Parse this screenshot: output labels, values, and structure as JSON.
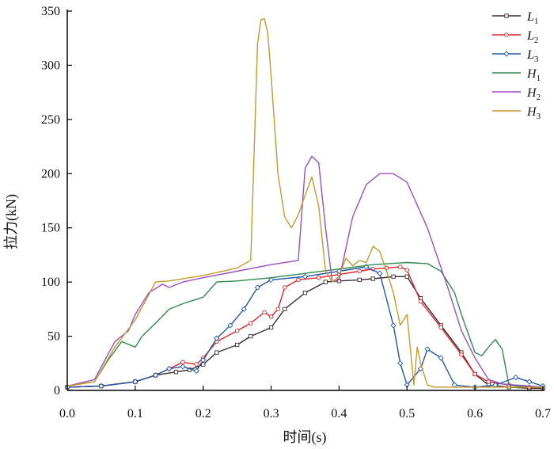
{
  "chart_data": {
    "type": "line",
    "xlabel": "时间(s)",
    "ylabel": "拉力(kN)",
    "xlim": [
      0.0,
      0.7
    ],
    "ylim": [
      0,
      350
    ],
    "x_ticks": [
      "0.0",
      "0.1",
      "0.2",
      "0.3",
      "0.4",
      "0.5",
      "0.6",
      "0.7"
    ],
    "y_ticks": [
      "0",
      "50",
      "100",
      "150",
      "200",
      "250",
      "300",
      "350"
    ],
    "grid": false,
    "legend_position": "top-right",
    "series": [
      {
        "name": "L1",
        "label_main": "L",
        "label_sub": "1",
        "color": "#3a2e2e",
        "marker": "square",
        "x": [
          0.0,
          0.05,
          0.1,
          0.13,
          0.16,
          0.18,
          0.2,
          0.22,
          0.25,
          0.27,
          0.3,
          0.32,
          0.35,
          0.38,
          0.4,
          0.43,
          0.45,
          0.48,
          0.5,
          0.52,
          0.55,
          0.58,
          0.6,
          0.62,
          0.65,
          0.68,
          0.7
        ],
        "y": [
          3,
          4,
          8,
          14,
          17,
          19,
          24,
          35,
          42,
          50,
          58,
          75,
          90,
          100,
          101,
          102,
          103,
          105,
          105,
          85,
          60,
          35,
          15,
          5,
          3,
          2,
          2
        ]
      },
      {
        "name": "L2",
        "label_main": "L",
        "label_sub": "2",
        "color": "#e0262c",
        "marker": "circle",
        "x": [
          0.0,
          0.05,
          0.1,
          0.13,
          0.15,
          0.17,
          0.19,
          0.2,
          0.22,
          0.25,
          0.27,
          0.29,
          0.3,
          0.31,
          0.32,
          0.34,
          0.37,
          0.4,
          0.43,
          0.45,
          0.47,
          0.49,
          0.5,
          0.52,
          0.55,
          0.58,
          0.6,
          0.62,
          0.65,
          0.68,
          0.7
        ],
        "y": [
          3,
          4,
          8,
          14,
          20,
          26,
          24,
          30,
          45,
          55,
          62,
          72,
          68,
          75,
          95,
          102,
          104,
          107,
          110,
          112,
          113,
          114,
          111,
          82,
          58,
          33,
          15,
          8,
          5,
          3,
          3
        ]
      },
      {
        "name": "L3",
        "label_main": "L",
        "label_sub": "3",
        "color": "#2358a8",
        "marker": "diamond",
        "x": [
          0.0,
          0.05,
          0.1,
          0.13,
          0.15,
          0.17,
          0.19,
          0.2,
          0.22,
          0.24,
          0.26,
          0.28,
          0.3,
          0.35,
          0.4,
          0.44,
          0.46,
          0.48,
          0.49,
          0.5,
          0.52,
          0.53,
          0.55,
          0.57,
          0.6,
          0.63,
          0.66,
          0.68,
          0.7
        ],
        "y": [
          3,
          4,
          8,
          14,
          20,
          22,
          18,
          28,
          48,
          60,
          75,
          95,
          102,
          105,
          110,
          114,
          108,
          60,
          25,
          5,
          20,
          38,
          30,
          5,
          3,
          5,
          12,
          8,
          4
        ]
      },
      {
        "name": "H1",
        "label_main": "H",
        "label_sub": "1",
        "color": "#2e8b4e",
        "marker": "none",
        "x": [
          0.0,
          0.04,
          0.06,
          0.08,
          0.1,
          0.11,
          0.13,
          0.15,
          0.17,
          0.2,
          0.22,
          0.25,
          0.3,
          0.35,
          0.4,
          0.45,
          0.5,
          0.53,
          0.55,
          0.57,
          0.58,
          0.6,
          0.61,
          0.62,
          0.63,
          0.64,
          0.65,
          0.68,
          0.7
        ],
        "y": [
          4,
          8,
          28,
          45,
          40,
          50,
          62,
          75,
          80,
          86,
          100,
          101,
          104,
          108,
          112,
          116,
          118,
          117,
          110,
          90,
          70,
          35,
          32,
          40,
          47,
          38,
          5,
          3,
          3
        ]
      },
      {
        "name": "H2",
        "label_main": "H",
        "label_sub": "2",
        "color": "#9c4fc4",
        "marker": "none",
        "x": [
          0.0,
          0.04,
          0.07,
          0.09,
          0.1,
          0.12,
          0.14,
          0.15,
          0.17,
          0.2,
          0.25,
          0.3,
          0.34,
          0.35,
          0.36,
          0.37,
          0.38,
          0.39,
          0.4,
          0.42,
          0.44,
          0.46,
          0.48,
          0.5,
          0.53,
          0.56,
          0.58,
          0.6,
          0.62,
          0.64,
          0.66,
          0.68,
          0.7
        ],
        "y": [
          4,
          10,
          45,
          55,
          70,
          90,
          98,
          95,
          100,
          104,
          110,
          116,
          120,
          205,
          216,
          210,
          150,
          100,
          102,
          160,
          190,
          200,
          200,
          192,
          150,
          95,
          55,
          30,
          10,
          6,
          5,
          4,
          3
        ]
      },
      {
        "name": "H3",
        "label_main": "H",
        "label_sub": "3",
        "color": "#c49a2e",
        "marker": "none",
        "x": [
          0.0,
          0.04,
          0.07,
          0.1,
          0.13,
          0.15,
          0.2,
          0.25,
          0.27,
          0.28,
          0.285,
          0.29,
          0.295,
          0.3,
          0.31,
          0.32,
          0.33,
          0.34,
          0.35,
          0.36,
          0.37,
          0.38,
          0.39,
          0.4,
          0.41,
          0.42,
          0.43,
          0.44,
          0.45,
          0.46,
          0.47,
          0.48,
          0.49,
          0.5,
          0.51,
          0.515,
          0.52,
          0.53,
          0.54,
          0.56,
          0.6,
          0.65,
          0.7
        ],
        "y": [
          4,
          8,
          40,
          65,
          100,
          101,
          106,
          113,
          120,
          320,
          342,
          343,
          330,
          290,
          200,
          160,
          150,
          162,
          180,
          197,
          170,
          110,
          100,
          105,
          122,
          115,
          120,
          118,
          133,
          128,
          110,
          90,
          60,
          70,
          5,
          40,
          25,
          5,
          3,
          3,
          3,
          3,
          3
        ]
      }
    ]
  }
}
